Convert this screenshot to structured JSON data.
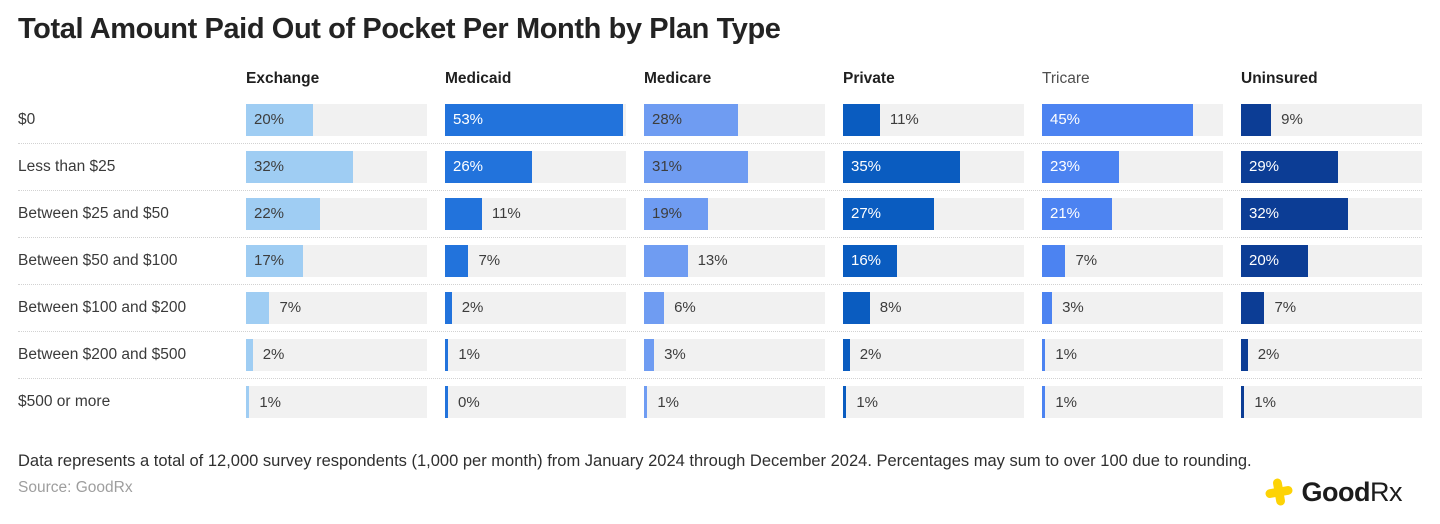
{
  "title": "Total Amount Paid Out of Pocket Per Month by Plan Type",
  "chart_data": {
    "type": "bar",
    "orientation": "horizontal",
    "title": "Total Amount Paid Out of Pocket Per Month by Plan Type",
    "categories": [
      "$0",
      "Less than $25",
      "Between $25 and $50",
      "Between $50 and $100",
      "Between $100 and $200",
      "Between $200 and $500",
      "$500 or more"
    ],
    "series": [
      {
        "name": "Exchange",
        "color": "#9fcdf3",
        "inside_label_color": "#3d3d3d",
        "muted_header": false,
        "values": [
          20,
          32,
          22,
          17,
          7,
          2,
          1
        ]
      },
      {
        "name": "Medicaid",
        "color": "#2273dc",
        "inside_label_color": "#ffffff",
        "muted_header": false,
        "values": [
          53,
          26,
          11,
          7,
          2,
          1,
          0
        ]
      },
      {
        "name": "Medicare",
        "color": "#6f9cf2",
        "inside_label_color": "#3d3d3d",
        "muted_header": false,
        "values": [
          28,
          31,
          19,
          13,
          6,
          3,
          1
        ]
      },
      {
        "name": "Private",
        "color": "#0a5cc0",
        "inside_label_color": "#ffffff",
        "muted_header": false,
        "values": [
          11,
          35,
          27,
          16,
          8,
          2,
          1
        ]
      },
      {
        "name": "Tricare",
        "color": "#4c83f1",
        "inside_label_color": "#ffffff",
        "muted_header": true,
        "values": [
          45,
          23,
          21,
          7,
          3,
          1,
          1
        ]
      },
      {
        "name": "Uninsured",
        "color": "#0c3d95",
        "inside_label_color": "#ffffff",
        "muted_header": false,
        "values": [
          9,
          29,
          32,
          20,
          7,
          2,
          1
        ]
      }
    ],
    "value_suffix": "%",
    "axis_max": 54,
    "inside_label_threshold": 16,
    "track_color": "#f1f1f1",
    "legend_position": "none",
    "grid": "dotted-row-separators"
  },
  "footer": {
    "note": "Data represents a total of 12,000 survey respondents (1,000 per month) from January 2024 through December 2024. Percentages may sum to over 100 due to rounding.",
    "source": "Source: GoodRx"
  },
  "logo": {
    "text_bold": "Good",
    "text_light": "Rx",
    "plus_color": "#fdd305"
  }
}
